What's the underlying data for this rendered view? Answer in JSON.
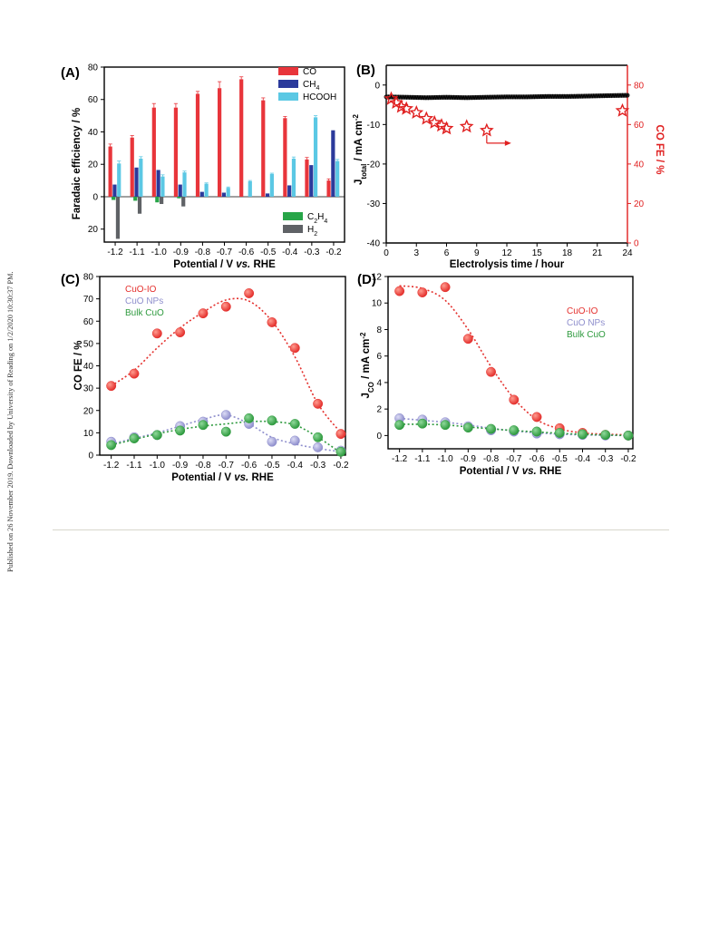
{
  "side_note": "Published on 26 November 2019. Downloaded by University of Reading on 1/2/2020 10:30:37 PM.",
  "colors": {
    "co": "#e8353b",
    "ch4": "#2b3a9b",
    "hcooh": "#5bc8e4",
    "c2h4": "#27a548",
    "h2": "#5f6266",
    "cuo_io": "#e4302d",
    "cuo_nps": "#8f8fcd",
    "bulk_cuo": "#2e9a3e",
    "right_axis": "#e02020"
  },
  "chart_data": [
    {
      "panel": "(A)",
      "type": "bar",
      "xlabel": "Potential / V vs. RHE",
      "ylabel": "Faradaic efficiency / %",
      "categories": [
        "-1.2",
        "-1.1",
        "-1.0",
        "-0.9",
        "-0.8",
        "-0.7",
        "-0.6",
        "-0.5",
        "-0.4",
        "-0.3",
        "-0.2"
      ],
      "y_ticks_up": [
        "80",
        "60",
        "40",
        "20",
        "0"
      ],
      "y_ticks_down": [
        "20"
      ],
      "ylim": [
        -28,
        80
      ],
      "legend_top": [
        "CO",
        "CH4",
        "HCOOH"
      ],
      "legend_bottom": [
        "C2H4",
        "H2"
      ],
      "series": [
        {
          "name": "CO",
          "values": [
            31,
            36.5,
            55,
            55,
            63.5,
            67,
            72.5,
            59.5,
            48.5,
            23,
            10
          ]
        },
        {
          "name": "CH4",
          "values": [
            7.5,
            18,
            16.5,
            7.5,
            3,
            2.5,
            0,
            2,
            7,
            19.5,
            41
          ]
        },
        {
          "name": "HCOOH",
          "values": [
            20.5,
            23.5,
            12.5,
            15,
            8,
            5.5,
            9.5,
            14,
            23.5,
            49,
            22
          ]
        },
        {
          "name": "C2H4",
          "values": [
            -2,
            -2.5,
            -3.5,
            -1,
            0,
            0,
            0,
            0,
            0,
            0,
            0
          ]
        },
        {
          "name": "H2",
          "values": [
            -26,
            -10.5,
            -4.5,
            -6,
            0,
            0,
            0,
            0,
            0,
            0,
            0
          ]
        }
      ],
      "errors": {
        "CO": [
          1.5,
          1.2,
          2.5,
          2.5,
          1.5,
          4,
          1.5,
          1.5,
          1,
          1.2,
          1
        ],
        "HCOOH": [
          1.5,
          1.2,
          1,
          0.8,
          0.5,
          0.5,
          0.5,
          0.5,
          1,
          1,
          1
        ]
      }
    },
    {
      "panel": "(B)",
      "type": "line",
      "xlabel": "Electrolysis time / hour",
      "ylabel": "Jtotal / mA cm-2",
      "y2label": "CO FE / %",
      "xlim": [
        0,
        24
      ],
      "ylim": [
        -40,
        5
      ],
      "y2lim": [
        0,
        90
      ],
      "x_ticks": [
        "0",
        "3",
        "6",
        "9",
        "12",
        "15",
        "18",
        "21",
        "24"
      ],
      "y_ticks": [
        "0",
        "-10",
        "-20",
        "-30",
        "-40"
      ],
      "y2_ticks": [
        "80",
        "60",
        "40",
        "20",
        "0"
      ],
      "series": [
        {
          "name": "Jtotal",
          "x": [
            0,
            2,
            4,
            6,
            8,
            10,
            12,
            14,
            16,
            18,
            20,
            22,
            24
          ],
          "y": [
            -3,
            -3.1,
            -3.2,
            -3.1,
            -3.2,
            -3.1,
            -3.0,
            -3.0,
            -2.9,
            -2.9,
            -2.8,
            -2.7,
            -2.6
          ]
        },
        {
          "name": "CO FE",
          "x": [
            0.5,
            1.0,
            1.5,
            2.0,
            3.0,
            4.0,
            4.8,
            5.5,
            6.0,
            8.0,
            10.0,
            23.5
          ],
          "y": [
            73,
            71,
            69,
            68,
            66,
            63,
            61,
            59.5,
            58,
            59,
            57,
            67
          ]
        }
      ]
    },
    {
      "panel": "(C)",
      "type": "scatter",
      "xlabel": "Potential / V vs. RHE",
      "ylabel": "CO FE / %",
      "xlim": [
        -1.25,
        -0.18
      ],
      "ylim": [
        0,
        80
      ],
      "x_ticks": [
        "-1.2",
        "-1.1",
        "-1.0",
        "-0.9",
        "-0.8",
        "-0.7",
        "-0.6",
        "-0.5",
        "-0.4",
        "-0.3",
        "-0.2"
      ],
      "y_ticks": [
        "0",
        "10",
        "20",
        "30",
        "40",
        "50",
        "60",
        "70",
        "80"
      ],
      "x": [
        -1.2,
        -1.1,
        -1.0,
        -0.9,
        -0.8,
        -0.7,
        -0.6,
        -0.5,
        -0.4,
        -0.3,
        -0.2
      ],
      "series": [
        {
          "name": "CuO-IO",
          "values": [
            31,
            36.5,
            54.5,
            55,
            63.5,
            66.5,
            72.5,
            59.5,
            48,
            23,
            9.5
          ]
        },
        {
          "name": "CuO NPs",
          "values": [
            6,
            8,
            9,
            13,
            15,
            18,
            14,
            6,
            6.5,
            3.5,
            2
          ]
        },
        {
          "name": "Bulk CuO",
          "values": [
            4.5,
            7.5,
            9,
            11,
            13.5,
            10.5,
            16.5,
            15.5,
            14,
            8,
            1.5
          ]
        }
      ]
    },
    {
      "panel": "(D)",
      "type": "scatter",
      "xlabel": "Potential / V vs. RHE",
      "ylabel": "JCO / mA cm-2",
      "xlim": [
        -1.25,
        -0.18
      ],
      "ylim": [
        -1,
        12
      ],
      "x_ticks": [
        "-1.2",
        "-1.1",
        "-1.0",
        "-0.9",
        "-0.8",
        "-0.7",
        "-0.6",
        "-0.5",
        "-0.4",
        "-0.3",
        "-0.2"
      ],
      "y_ticks": [
        "0",
        "2",
        "4",
        "6",
        "8",
        "10",
        "12"
      ],
      "x": [
        -1.2,
        -1.1,
        -1.0,
        -0.9,
        -0.8,
        -0.7,
        -0.6,
        -0.5,
        -0.4,
        -0.3,
        -0.2
      ],
      "series": [
        {
          "name": "CuO-IO",
          "values": [
            10.9,
            10.8,
            11.2,
            7.3,
            4.8,
            2.7,
            1.4,
            0.55,
            0.2,
            0.05,
            0
          ]
        },
        {
          "name": "CuO NPs",
          "values": [
            1.3,
            1.2,
            1.0,
            0.7,
            0.4,
            0.3,
            0.15,
            0.1,
            0.05,
            0,
            0
          ]
        },
        {
          "name": "Bulk CuO",
          "values": [
            0.8,
            0.9,
            0.8,
            0.6,
            0.5,
            0.4,
            0.3,
            0.2,
            0.1,
            0.05,
            0
          ]
        }
      ]
    }
  ]
}
